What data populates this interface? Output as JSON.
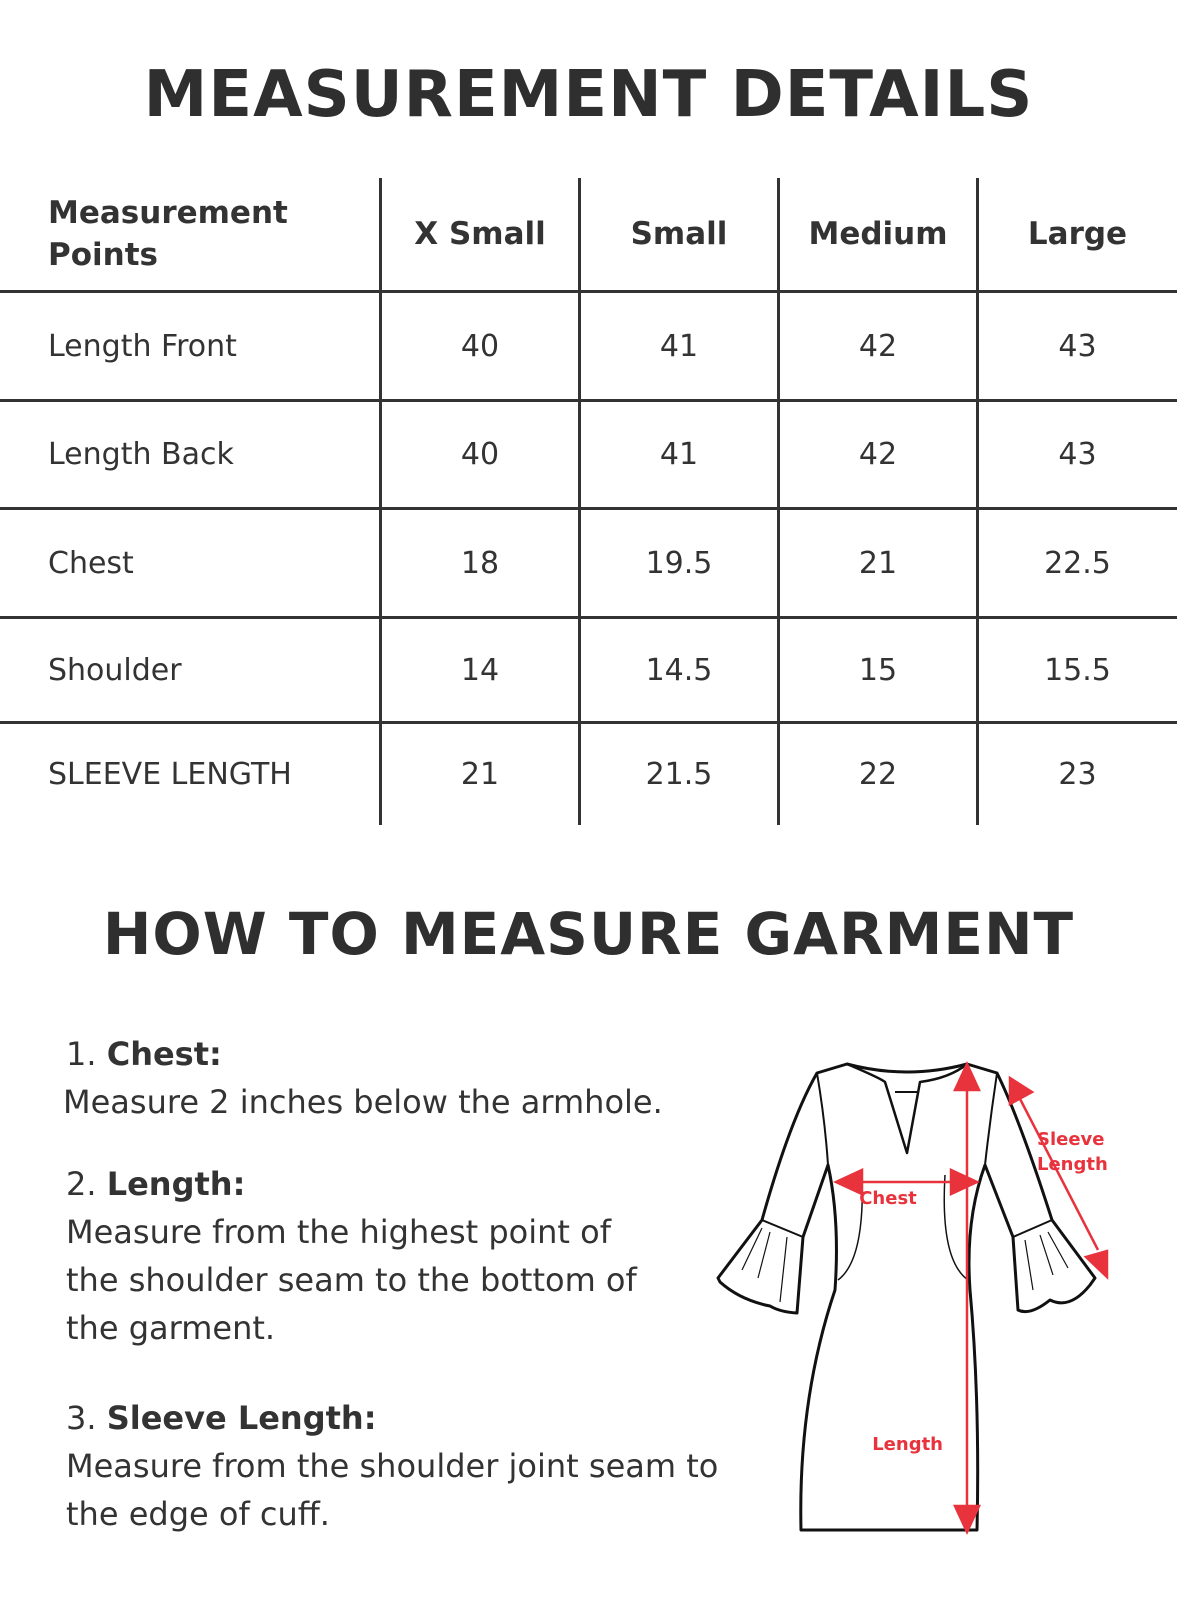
{
  "title": "MEASUREMENT DETAILS",
  "table": {
    "headers": [
      "Measurement Points",
      "X Small",
      "Small",
      "Medium",
      "Large"
    ],
    "rows": [
      [
        "Length Front",
        "40",
        "41",
        "42",
        "43"
      ],
      [
        "Length Back",
        "40",
        "41",
        "42",
        "43"
      ],
      [
        "Chest",
        "18",
        "19.5",
        "21",
        "22.5"
      ],
      [
        "Shoulder",
        "14",
        "14.5",
        "15",
        "15.5"
      ],
      [
        "SLEEVE LENGTH",
        "21",
        "21.5",
        "22",
        "23"
      ]
    ]
  },
  "howto_title": "HOW TO MEASURE GARMENT",
  "instructions": [
    {
      "num": "1.",
      "label": "Chest:",
      "text": "Measure 2 inches  below the armhole."
    },
    {
      "num": "2.",
      "label": "Length:",
      "text": "Measure from the highest point of the shoulder seam to the bottom of the garment."
    },
    {
      "num": "3.",
      "label": "Sleeve Length:",
      "text": "Measure from the shoulder joint seam to the edge of cuff."
    }
  ],
  "diagram": {
    "labels": {
      "chest": "Chest",
      "length": "Length",
      "sleeve_1": "Sleeve",
      "sleeve_2": "Length"
    },
    "accent_color": "#e8323c",
    "outline_color": "#111111"
  }
}
